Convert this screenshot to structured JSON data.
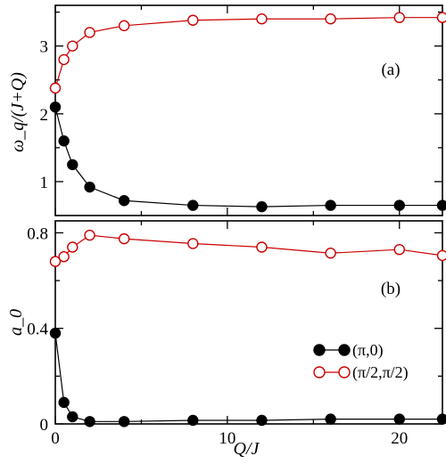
{
  "chart_data": [
    {
      "type": "line",
      "panel_label": "(a)",
      "ylabel": "ω_q/(J+Q)",
      "xlim": [
        0,
        22.5
      ],
      "ylim": [
        0.5,
        3.6
      ],
      "x_ticks": [
        0,
        10,
        20
      ],
      "y_ticks": [
        1,
        2,
        3
      ],
      "series": [
        {
          "color": "#cc0000",
          "marker": "open-circle",
          "x": [
            0,
            0.5,
            1,
            2,
            4,
            8,
            12,
            16,
            20,
            22.5
          ],
          "y": [
            2.38,
            2.8,
            3.0,
            3.2,
            3.3,
            3.38,
            3.4,
            3.4,
            3.42,
            3.42
          ]
        },
        {
          "color": "#000000",
          "marker": "filled-circle",
          "x": [
            0,
            0.5,
            1,
            2,
            4,
            8,
            12,
            16,
            20,
            22.5
          ],
          "y": [
            2.1,
            1.6,
            1.25,
            0.92,
            0.72,
            0.65,
            0.63,
            0.65,
            0.65,
            0.65
          ]
        }
      ]
    },
    {
      "type": "line",
      "panel_label": "(b)",
      "ylabel": "a_0",
      "xlabel": "Q/J",
      "xlim": [
        0,
        22.5
      ],
      "ylim": [
        0,
        0.85
      ],
      "x_ticks": [
        0,
        10,
        20
      ],
      "y_ticks": [
        0,
        0.4,
        0.8
      ],
      "legend_position": "bottom-right",
      "series": [
        {
          "name": "(π,0)",
          "color": "#000000",
          "marker": "filled-circle",
          "x": [
            0,
            0.5,
            1,
            2,
            4,
            8,
            12,
            16,
            20,
            22.5
          ],
          "y": [
            0.38,
            0.09,
            0.03,
            0.01,
            0.01,
            0.015,
            0.015,
            0.02,
            0.02,
            0.02
          ]
        },
        {
          "name": "(π/2,π/2)",
          "color": "#cc0000",
          "marker": "open-circle",
          "x": [
            0,
            0.5,
            1,
            2,
            4,
            8,
            12,
            16,
            20,
            22.5
          ],
          "y": [
            0.68,
            0.7,
            0.74,
            0.79,
            0.775,
            0.755,
            0.74,
            0.715,
            0.73,
            0.705
          ]
        }
      ]
    }
  ]
}
